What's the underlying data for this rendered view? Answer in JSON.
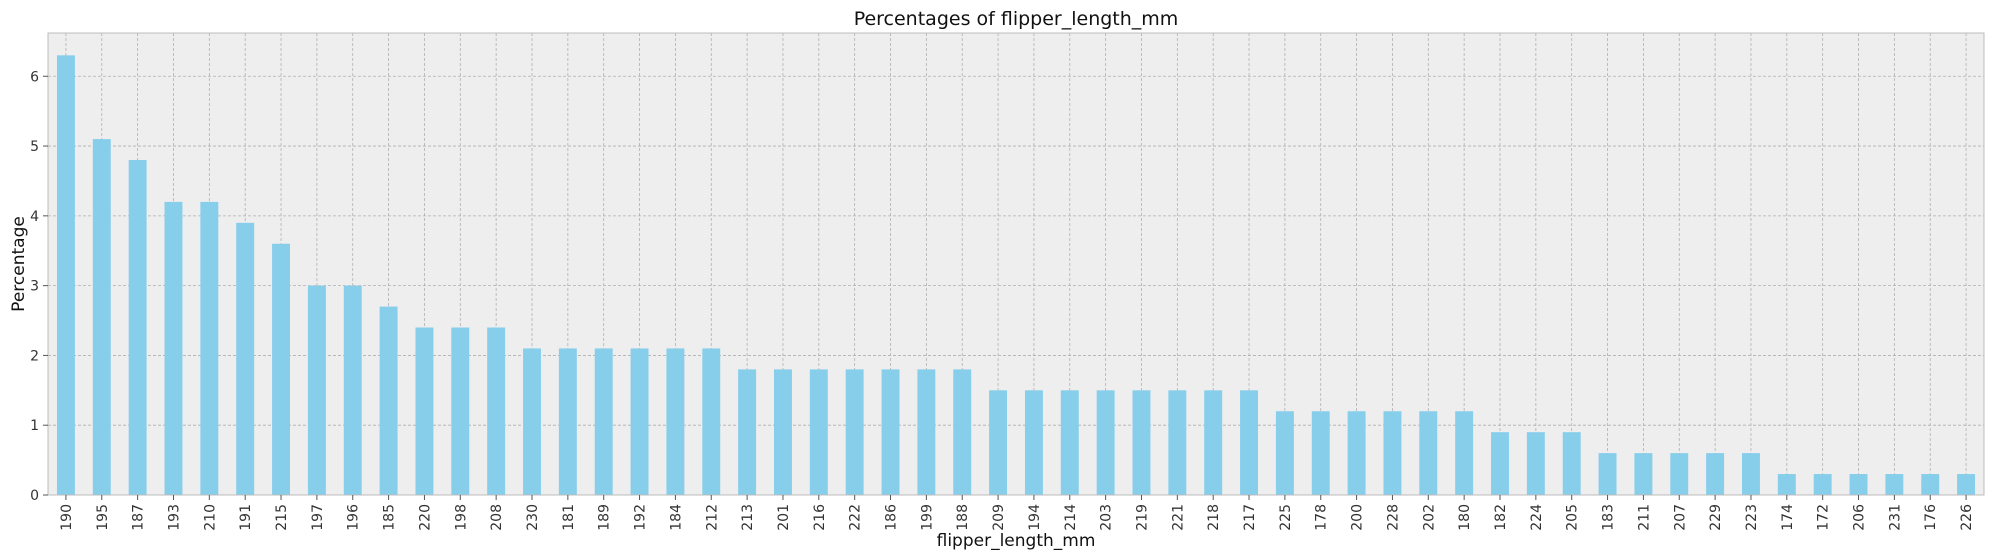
{
  "chart_data": {
    "type": "bar",
    "title": "Percentages of flipper_length_mm",
    "xlabel": "flipper_length_mm",
    "ylabel": "Percentage",
    "ylim": [
      0,
      6.62
    ],
    "yticks": [
      0,
      1,
      2,
      3,
      4,
      5,
      6
    ],
    "grid": true,
    "bar_color": "#87ceeb",
    "background_color": "#eeeeee",
    "grid_color": "#b0b0b0",
    "categories": [
      "190",
      "195",
      "187",
      "193",
      "210",
      "191",
      "215",
      "197",
      "196",
      "185",
      "220",
      "198",
      "208",
      "230",
      "181",
      "189",
      "192",
      "184",
      "212",
      "213",
      "201",
      "216",
      "222",
      "186",
      "199",
      "188",
      "209",
      "194",
      "214",
      "203",
      "219",
      "221",
      "218",
      "217",
      "225",
      "178",
      "200",
      "228",
      "202",
      "180",
      "182",
      "224",
      "205",
      "183",
      "211",
      "207",
      "229",
      "223",
      "174",
      "172",
      "206",
      "231",
      "176",
      "226"
    ],
    "values": [
      6.3,
      5.1,
      4.8,
      4.2,
      4.2,
      3.9,
      3.6,
      3.0,
      3.0,
      2.7,
      2.4,
      2.4,
      2.4,
      2.1,
      2.1,
      2.1,
      2.1,
      2.1,
      2.1,
      1.8,
      1.8,
      1.8,
      1.8,
      1.8,
      1.8,
      1.8,
      1.5,
      1.5,
      1.5,
      1.5,
      1.5,
      1.5,
      1.5,
      1.5,
      1.2,
      1.2,
      1.2,
      1.2,
      1.2,
      1.2,
      0.9,
      0.9,
      0.9,
      0.6,
      0.6,
      0.6,
      0.6,
      0.6,
      0.3,
      0.3,
      0.3,
      0.3,
      0.3,
      0.3
    ]
  }
}
